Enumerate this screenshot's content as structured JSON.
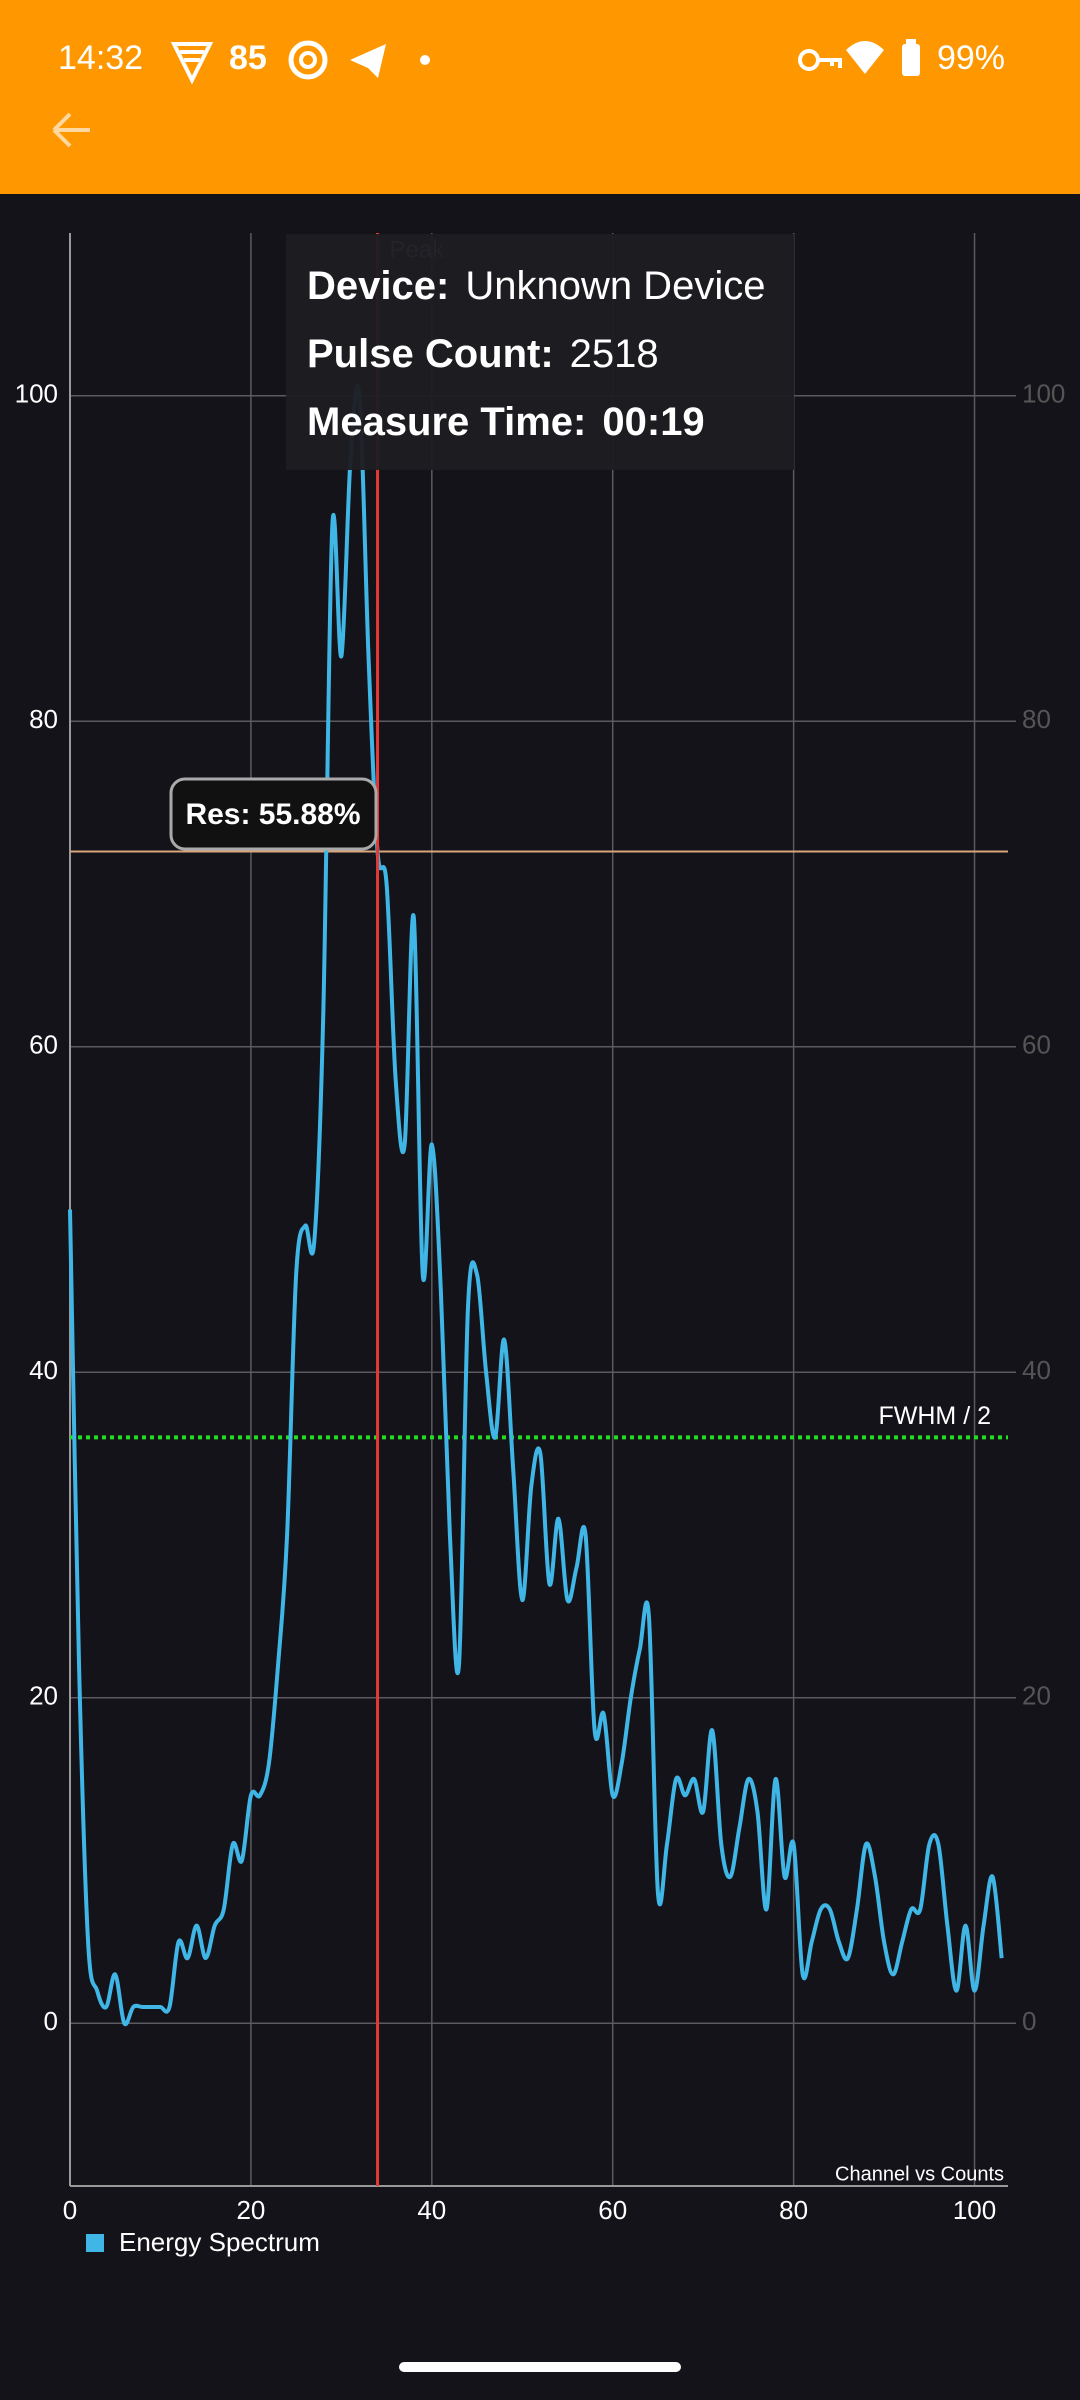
{
  "status_bar": {
    "time": "14:32",
    "notification_count": 85,
    "battery": "99%"
  },
  "chart_data": {
    "type": "line",
    "info": [
      {
        "label": "Device:",
        "value": "Unknown Device"
      },
      {
        "label": "Pulse Count:",
        "value": 2518
      },
      {
        "label": "Measure Time:",
        "value": "00:19"
      }
    ],
    "annotation": "Channel vs Counts",
    "x": [
      0,
      1,
      2,
      3,
      4,
      5,
      6,
      7,
      8,
      9,
      10,
      11,
      12,
      13,
      14,
      15,
      16,
      17,
      18,
      19,
      20,
      21,
      22,
      23,
      24,
      25,
      26,
      27,
      28,
      29,
      30,
      31,
      32,
      33,
      34,
      35,
      36,
      37,
      38,
      39,
      40,
      41,
      42,
      43,
      44,
      45,
      46,
      47,
      48,
      49,
      50,
      51,
      52,
      53,
      54,
      55,
      56,
      57,
      58,
      59,
      60,
      61,
      62,
      63,
      64,
      65,
      66,
      67,
      68,
      69,
      70,
      71,
      72,
      73,
      74,
      75,
      76,
      77,
      78,
      79,
      80,
      81,
      82,
      83,
      84,
      85,
      86,
      87,
      88,
      89,
      90,
      91,
      92,
      93,
      94,
      95,
      96,
      97,
      98,
      99,
      100,
      101,
      102,
      103
    ],
    "series": [
      {
        "name": "Energy Spectrum",
        "color": "#3fb6e6",
        "values": [
          50,
          22,
          5,
          2,
          1,
          3,
          0,
          1,
          1,
          1,
          1,
          1,
          5,
          4,
          6,
          4,
          6,
          7,
          11,
          10,
          14,
          14,
          16,
          22,
          30,
          46,
          49,
          48,
          62,
          92,
          84,
          96,
          100,
          84,
          72,
          70,
          58,
          54,
          68,
          46,
          54,
          45,
          30,
          22,
          44,
          46,
          40,
          36,
          42,
          34,
          26,
          33,
          35,
          27,
          31,
          26,
          28,
          30,
          18,
          19,
          14,
          16,
          20,
          23,
          25,
          8,
          11,
          15,
          14,
          15,
          13,
          18,
          11,
          9,
          12,
          15,
          13,
          7,
          15,
          9,
          11,
          3,
          5,
          7,
          7,
          5,
          4,
          7,
          11,
          9,
          5,
          3,
          5,
          7,
          7,
          11,
          11,
          6,
          2,
          6,
          2,
          6,
          9,
          4
        ]
      }
    ],
    "xlim": [
      0,
      103.7
    ],
    "ylim": [
      -10,
      110
    ],
    "xticks": [
      0,
      20,
      40,
      60,
      80,
      100
    ],
    "yticks": [
      0,
      20,
      40,
      60,
      80,
      100
    ],
    "y2lim": [
      -10,
      110
    ],
    "y2ticks": [
      0,
      20,
      40,
      60,
      80,
      100
    ],
    "grid": true,
    "peak_line": {
      "x": 34,
      "label": "Peak",
      "color": "#e53935"
    },
    "res_line": {
      "y": 72,
      "label": "Res: 55.88%",
      "color": "#d9a679"
    },
    "fwhm_line": {
      "y": 36,
      "label": "FWHM / 2",
      "color": "#22dd22"
    }
  }
}
